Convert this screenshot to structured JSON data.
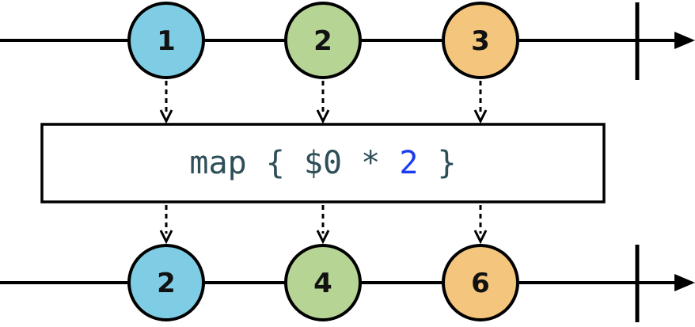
{
  "input_stream": {
    "marbles": [
      {
        "label": "1",
        "color": "#7ecde4"
      },
      {
        "label": "2",
        "color": "#b6d595"
      },
      {
        "label": "3",
        "color": "#f4c57c"
      }
    ]
  },
  "operator": {
    "tokens": [
      {
        "text": "map { $0 * ",
        "kind": "plain"
      },
      {
        "text": "2",
        "kind": "number"
      },
      {
        "text": " }",
        "kind": "plain"
      }
    ]
  },
  "output_stream": {
    "marbles": [
      {
        "label": "2",
        "color": "#7ecde4"
      },
      {
        "label": "4",
        "color": "#b6d595"
      },
      {
        "label": "6",
        "color": "#f4c57c"
      }
    ]
  },
  "colors": {
    "line": "#000000",
    "operator_plain": "#2e4e58",
    "operator_number": "#1a3df0"
  }
}
